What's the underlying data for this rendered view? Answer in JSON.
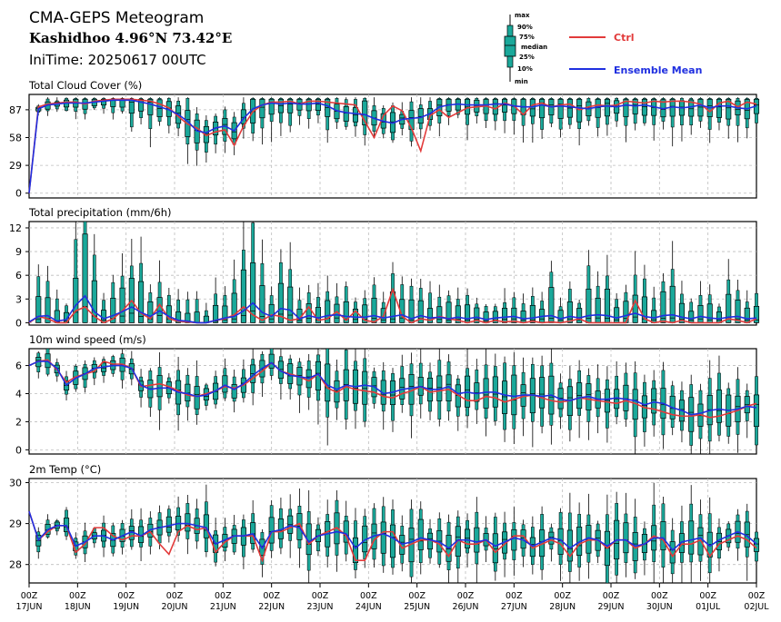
{
  "header": {
    "title": "CMA-GEPS Meteogram",
    "location": "Kashidhoo 4.96°N 73.42°E",
    "init_time": "IniTime: 20250617 00UTC"
  },
  "box_key": {
    "labels": [
      "max",
      "90%",
      "75%",
      "median",
      "25%",
      "10%",
      "min"
    ]
  },
  "legend": {
    "ctrl": {
      "label": "Ctrl",
      "color": "#e23a3a"
    },
    "mean": {
      "label": "Ensemble Mean",
      "color": "#1f2fe0"
    }
  },
  "colors": {
    "box_fill": "#1aa89a",
    "box_stroke": "#000000",
    "grid": "#bdbdbd"
  },
  "x_axis": {
    "day_labels": [
      "17JUN",
      "18JUN",
      "19JUN",
      "20JUN",
      "21JUN",
      "22JUN",
      "23JUN",
      "24JUN",
      "25JUN",
      "26JUN",
      "27JUN",
      "28JUN",
      "29JUN",
      "30JUN",
      "01JUL",
      "02JUL"
    ],
    "hour_label": "00Z"
  },
  "chart_data": [
    {
      "type": "box",
      "title": "Total Cloud Cover (%)",
      "ylim": [
        -5,
        103
      ],
      "yticks": [
        0,
        29,
        58,
        87
      ],
      "ctrl": [
        0,
        90,
        93,
        94,
        95,
        95,
        93,
        96,
        97,
        98,
        98,
        98,
        97,
        96,
        93,
        89,
        80,
        72,
        68,
        60,
        64,
        66,
        50,
        70,
        85,
        92,
        95,
        95,
        96,
        93,
        96,
        96,
        95,
        94,
        93,
        92,
        75,
        58,
        81,
        91,
        86,
        68,
        44,
        81,
        87,
        79,
        84,
        89,
        90,
        91,
        88,
        94,
        91,
        82,
        92,
        94,
        90,
        92,
        93,
        87,
        90,
        92,
        91,
        92,
        96,
        95,
        94,
        96,
        95,
        96,
        96,
        95,
        93,
        85,
        94,
        96,
        90,
        95,
        93
      ],
      "mean": [
        0,
        88,
        92,
        93,
        94,
        94,
        94,
        95,
        96,
        97,
        97,
        97,
        95,
        93,
        90,
        87,
        82,
        75,
        65,
        63,
        68,
        70,
        65,
        78,
        88,
        92,
        94,
        93,
        94,
        93,
        93,
        94,
        91,
        86,
        84,
        83,
        82,
        78,
        75,
        73,
        77,
        78,
        79,
        83,
        90,
        92,
        93,
        92,
        92,
        92,
        93,
        93,
        91,
        90,
        90,
        92,
        90,
        91,
        90,
        89,
        88,
        90,
        91,
        90,
        92,
        91,
        92,
        90,
        88,
        90,
        89,
        90,
        92,
        89,
        91,
        91,
        89,
        88,
        91
      ]
    },
    {
      "type": "box",
      "title": "Total precipitation (mm/6h)",
      "ylim": [
        -0.3,
        12.8
      ],
      "yticks": [
        0,
        3,
        6,
        9,
        12
      ],
      "ctrl": [
        0,
        0.8,
        0.5,
        0,
        0,
        1.5,
        2,
        0.8,
        0,
        0.5,
        1.5,
        2.8,
        1.2,
        0.5,
        2.3,
        0.5,
        0.2,
        0.1,
        0,
        0,
        0.3,
        0.5,
        1,
        2,
        1,
        0.3,
        1,
        0.8,
        0.3,
        0.5,
        2,
        0.3,
        0.5,
        1.4,
        0.3,
        1.5,
        0.3,
        0.1,
        0.8,
        4.2,
        0.8,
        0,
        0.5,
        0.3,
        0.8,
        0.5,
        0.3,
        0,
        0.3,
        0,
        0.3,
        0.1,
        0.2,
        0,
        0.2,
        0,
        0.1,
        0,
        0.2,
        0.5,
        0,
        0,
        0,
        0,
        0,
        2.8,
        0.5,
        0,
        0.2,
        0,
        0.3,
        0,
        0,
        0,
        0,
        0.5,
        0.3,
        0,
        0.5
      ],
      "mean": [
        0.1,
        0.8,
        0.9,
        0.2,
        0.4,
        2.2,
        3.4,
        1.4,
        0.5,
        0.9,
        1.4,
        2,
        1.3,
        0.8,
        1.5,
        0.8,
        0.3,
        0.2,
        0,
        0,
        0.3,
        0.6,
        0.8,
        1.5,
        2.5,
        1.3,
        0.8,
        1.8,
        1.6,
        0.5,
        0.9,
        0.6,
        0.9,
        1,
        0.8,
        0.7,
        0.7,
        0.9,
        0.6,
        0.8,
        1,
        0.5,
        0.9,
        0.6,
        0.7,
        0.5,
        0.7,
        0.5,
        0.7,
        0.4,
        0.6,
        0.7,
        0.8,
        0.5,
        0.6,
        0.8,
        0.9,
        0.5,
        0.8,
        0.6,
        0.9,
        1,
        0.9,
        0.6,
        0.9,
        1.2,
        0.8,
        0.6,
        0.9,
        1,
        0.7,
        0.5,
        0.8,
        0.6,
        0.5,
        0.7,
        0.8,
        0.5,
        0.6
      ]
    },
    {
      "type": "box",
      "title": "10m wind speed (m/s)",
      "ylim": [
        -0.3,
        7.2
      ],
      "yticks": [
        0,
        2,
        4,
        6
      ],
      "ctrl": [
        6,
        6.3,
        6.4,
        5.7,
        4.8,
        5.2,
        5.4,
        5.6,
        6.3,
        6.1,
        6.1,
        5.8,
        4.5,
        4.6,
        4.7,
        4.5,
        4.2,
        3.9,
        3.8,
        4,
        4.2,
        4.5,
        4.4,
        4.6,
        5.1,
        5.6,
        6.2,
        5.6,
        5.4,
        5.2,
        4.9,
        5.4,
        4.4,
        4.1,
        4.5,
        4.3,
        4.2,
        4.1,
        3.8,
        3.7,
        4,
        4.2,
        4.5,
        4.1,
        4.2,
        4.3,
        3.9,
        3.5,
        3.5,
        3.8,
        3.7,
        3.4,
        3.6,
        3.8,
        3.9,
        3.7,
        3.5,
        3.4,
        3.5,
        3.7,
        3.6,
        3.5,
        3.4,
        3.3,
        3.5,
        3.3,
        3,
        2.9,
        2.7,
        2.5,
        2.4,
        2.4,
        2.5,
        2.3,
        2.4,
        2.6,
        2.8,
        3.1,
        3.3
      ],
      "mean": [
        6,
        6.3,
        6.3,
        5.8,
        4.6,
        5.1,
        5.4,
        5.8,
        5.9,
        6,
        6,
        5.8,
        4.6,
        4.3,
        4.4,
        4.4,
        4.1,
        4,
        3.8,
        3.9,
        4.2,
        4.6,
        4.3,
        4.7,
        5.3,
        5.8,
        6.2,
        5.6,
        5.3,
        5.2,
        5.1,
        5.4,
        4.6,
        4.3,
        4.6,
        4.5,
        4.6,
        4.5,
        4,
        4.1,
        4.3,
        4.4,
        4.5,
        4.3,
        4.3,
        4.5,
        4,
        4.1,
        4,
        4.1,
        4.1,
        3.9,
        3.8,
        3.9,
        3.9,
        3.8,
        3.9,
        3.6,
        3.5,
        3.7,
        3.8,
        3.6,
        3.6,
        3.7,
        3.6,
        3.5,
        3.2,
        3.4,
        3.3,
        3,
        2.8,
        2.5,
        2.6,
        2.8,
        2.9,
        2.8,
        2.9,
        3.1,
        3
      ]
    },
    {
      "type": "box",
      "title": "2m Temp (°C)",
      "ylim": [
        27.55,
        30.1
      ],
      "yticks": [
        28,
        29,
        30
      ],
      "ctrl": [
        29.3,
        28.6,
        28.8,
        28.95,
        28.95,
        28.3,
        28.5,
        28.9,
        28.9,
        28.7,
        28.6,
        28.7,
        28.7,
        28.8,
        28.5,
        28.25,
        28.8,
        28.95,
        28.85,
        28.9,
        28.3,
        28.55,
        28.7,
        28.7,
        28.7,
        28.1,
        28.8,
        28.8,
        28.9,
        29,
        28.5,
        28.7,
        28.8,
        28.9,
        28.7,
        28.1,
        28.1,
        28.6,
        28.8,
        28.8,
        28.4,
        28.5,
        28.6,
        28.6,
        28.5,
        28.2,
        28.6,
        28.5,
        28.5,
        28.6,
        28.3,
        28.5,
        28.7,
        28.7,
        28.4,
        28.5,
        28.6,
        28.5,
        28.2,
        28.5,
        28.6,
        28.6,
        28.4,
        28.6,
        28.6,
        28.4,
        28.5,
        28.7,
        28.6,
        28.2,
        28.5,
        28.5,
        28.6,
        28.2,
        28.5,
        28.6,
        28.7,
        28.6,
        28.4
      ],
      "mean": [
        29.3,
        28.6,
        28.85,
        28.95,
        28.95,
        28.45,
        28.55,
        28.7,
        28.7,
        28.6,
        28.7,
        28.8,
        28.7,
        28.85,
        28.9,
        28.95,
        29,
        29,
        28.95,
        28.9,
        28.5,
        28.6,
        28.7,
        28.7,
        28.75,
        28.4,
        28.8,
        28.85,
        28.95,
        28.9,
        28.55,
        28.7,
        28.75,
        28.8,
        28.75,
        28.4,
        28.6,
        28.7,
        28.75,
        28.65,
        28.5,
        28.55,
        28.65,
        28.6,
        28.55,
        28.4,
        28.6,
        28.6,
        28.55,
        28.6,
        28.45,
        28.55,
        28.65,
        28.6,
        28.45,
        28.55,
        28.65,
        28.6,
        28.4,
        28.55,
        28.65,
        28.6,
        28.45,
        28.6,
        28.6,
        28.45,
        28.5,
        28.65,
        28.65,
        28.35,
        28.55,
        28.6,
        28.65,
        28.45,
        28.6,
        28.7,
        28.8,
        28.7,
        28.5
      ]
    }
  ]
}
